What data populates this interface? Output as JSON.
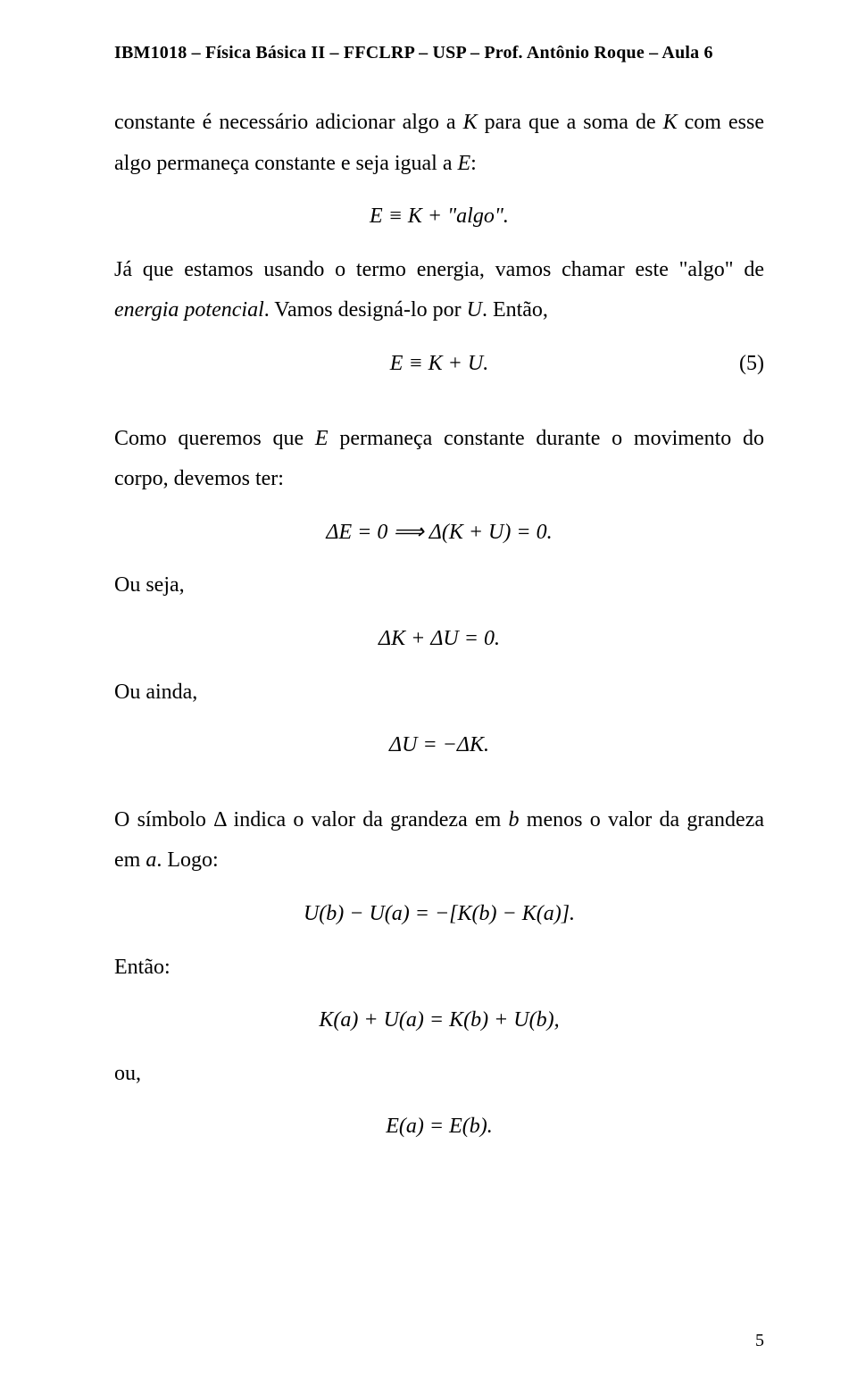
{
  "header": "IBM1018 – Física Básica II – FFCLRP – USP – Prof. Antônio Roque – Aula 6",
  "p1a": "constante é necessário adicionar algo a ",
  "p1b": " para que a soma de ",
  "p1c": " com esse algo permaneça constante e seja igual a ",
  "p1d": ":",
  "K": "K",
  "E": "E",
  "eq_def": "E ≡ K + \"algo\".",
  "p2a": "Já que estamos usando o termo energia, vamos chamar este \"algo\" de ",
  "p2b": "energia potencial",
  "p2c": ". Vamos designá-lo por ",
  "U": "U",
  "p2d": ". Então,",
  "eq5": "E ≡ K + U.",
  "eq5num": "(5)",
  "p3a": "Como queremos que ",
  "p3b": " permaneça constante durante o movimento do corpo, devemos ter:",
  "eq_delta1": "ΔE = 0 ⟹ Δ(K + U) = 0.",
  "ou_seja": "Ou seja,",
  "eq_delta2": "ΔK + ΔU = 0.",
  "ou_ainda": "Ou ainda,",
  "eq_delta3": "ΔU = −ΔK.",
  "p4a": "O símbolo Δ indica o valor da grandeza em ",
  "b": "b",
  "p4b": " menos o valor da grandeza em ",
  "a": "a",
  "p4c": ". Logo:",
  "eq_uab": "U(b) − U(a) = −[K(b) − K(a)].",
  "entao": "Então:",
  "eq_kab": "K(a) + U(a) = K(b) + U(b),",
  "ou": "ou,",
  "eq_eab": "E(a) = E(b).",
  "pagenum": "5"
}
